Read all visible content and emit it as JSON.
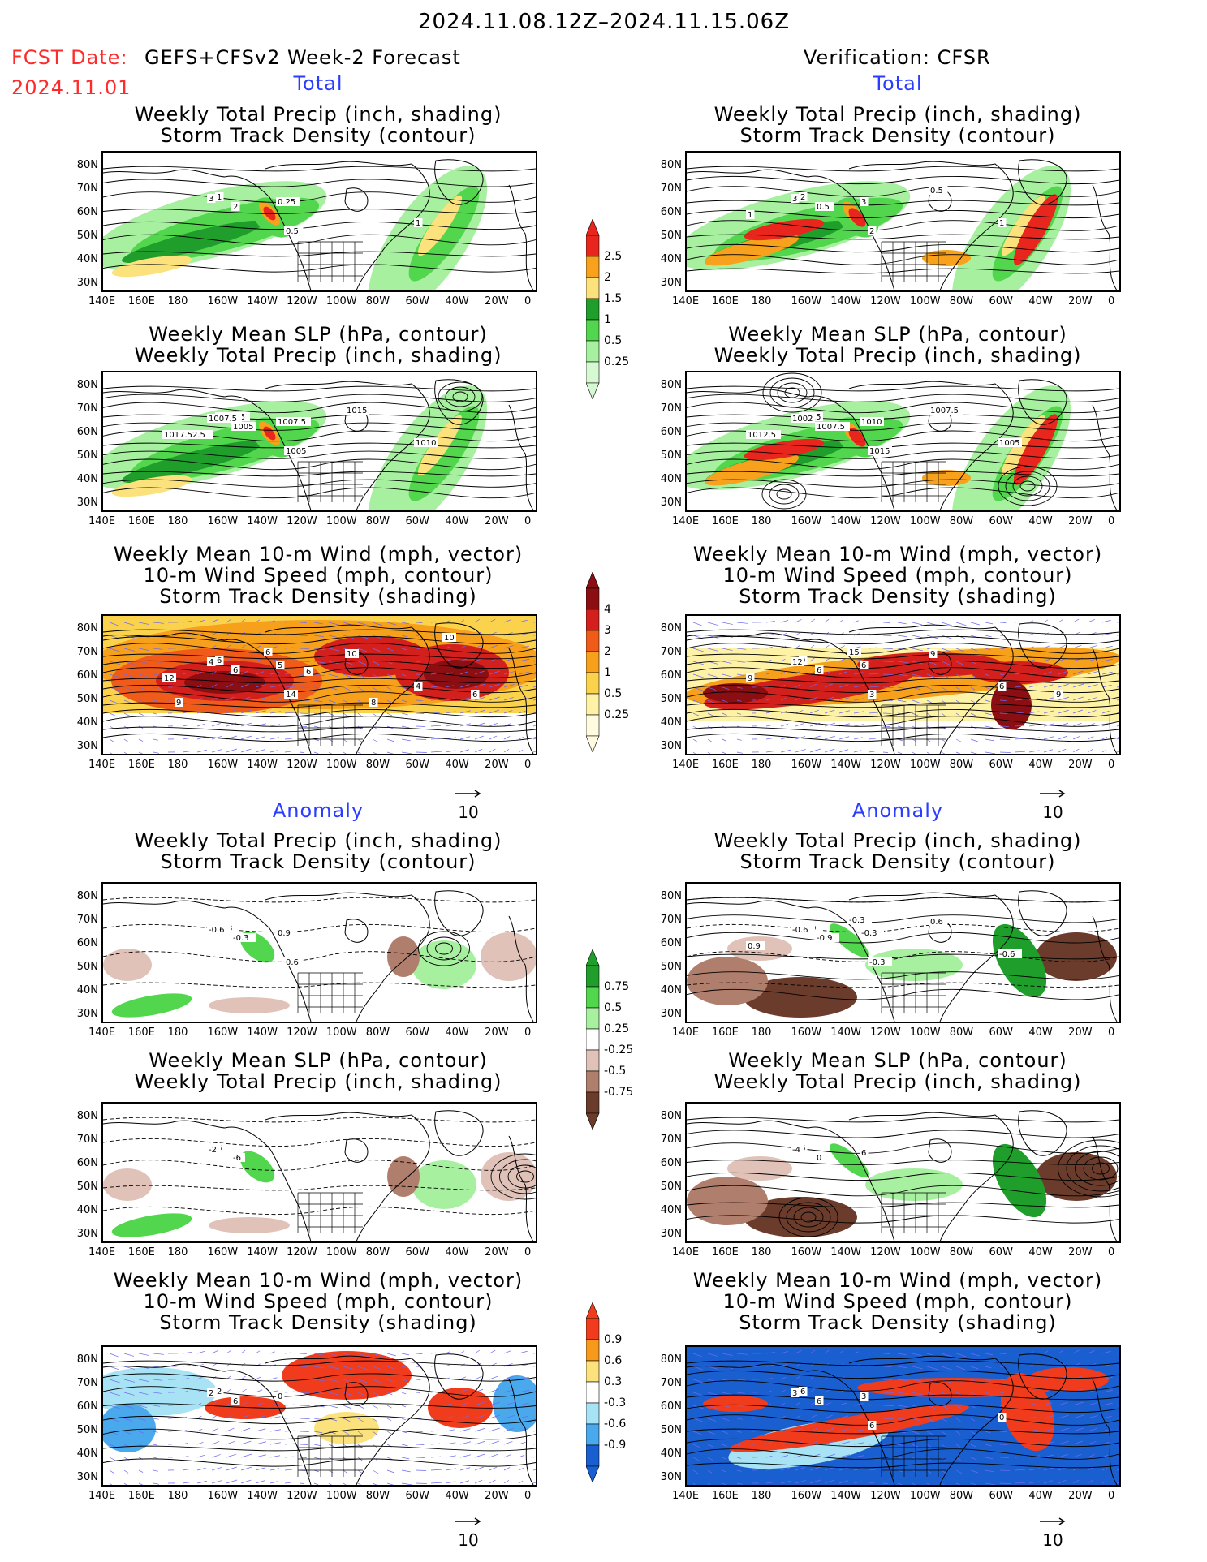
{
  "header": {
    "period": "2024.11.08.12Z–2024.11.15.06Z",
    "fcst_date_label": "FCST Date:",
    "fcst_model": "GEFS+CFSv2 Week-2 Forecast",
    "fcst_date": "2024.11.01",
    "verification": "Verification: CFSR"
  },
  "sections": {
    "total": "Total",
    "anomaly": "Anomaly"
  },
  "titles": {
    "precip_storm": [
      "Weekly Total Precip (inch, shading)",
      "Storm Track Density (contour)"
    ],
    "slp_precip": [
      "Weekly Mean SLP (hPa, contour)",
      "Weekly Total Precip (inch, shading)"
    ],
    "wind_storm": [
      "Weekly Mean 10-m Wind (mph, vector)",
      "10-m Wind Speed (mph, contour)",
      "Storm Track Density (shading)"
    ]
  },
  "axes": {
    "lon_ticks": [
      "140E",
      "160E",
      "180",
      "160W",
      "140W",
      "120W",
      "100W",
      "80W",
      "60W",
      "40W",
      "20W",
      "0"
    ],
    "lat_ticks": [
      "80N",
      "70N",
      "60N",
      "50N",
      "40N",
      "30N"
    ]
  },
  "vector_ref": "10",
  "colorbars": {
    "precip_total": {
      "labels": [
        "2.5",
        "2",
        "1.5",
        "1",
        "0.5",
        "0.25"
      ],
      "colors": [
        "#e8261e",
        "#f7a11c",
        "#fbe27c",
        "#1f9e2c",
        "#52d64d",
        "#a6f0a0",
        "#d6f8d2"
      ]
    },
    "storm_total": {
      "labels": [
        "4",
        "3",
        "2",
        "1",
        "0.5",
        "0.25"
      ],
      "colors": [
        "#8a0e12",
        "#d4201c",
        "#f05b1a",
        "#f7a01c",
        "#fbd24c",
        "#fef2a6",
        "#fffbe0"
      ]
    },
    "precip_anom": {
      "labels": [
        "0.75",
        "0.5",
        "0.25",
        "-0.25",
        "-0.5",
        "-0.75"
      ],
      "colors": [
        "#1f9e2c",
        "#52d64d",
        "#a6f0a0",
        "#ffffff",
        "#e0c2b8",
        "#b07e6c",
        "#6b3c2c"
      ]
    },
    "storm_anom": {
      "labels": [
        "0.9",
        "0.6",
        "0.3",
        "-0.3",
        "-0.6",
        "-0.9"
      ],
      "colors": [
        "#f03c1c",
        "#f79a1c",
        "#fbe27c",
        "#ffffff",
        "#a8e2f5",
        "#4aa8ec",
        "#1a5fd0"
      ]
    }
  },
  "contour_labels": {
    "L1": [
      "1",
      "3",
      "2",
      "0.25",
      "0.5",
      "1"
    ],
    "R1": [
      "2",
      "3",
      "0.5",
      "3",
      "2",
      "1",
      "1",
      "0.5"
    ],
    "L2": [
      "1017.5",
      "1007.5",
      "1005",
      "1007.5",
      "1005",
      "1010",
      "1017.52.5",
      "1015"
    ],
    "R2": [
      "1015",
      "1002",
      "1007.5",
      "1010",
      "1015",
      "1005",
      "1012.5",
      "1007.5"
    ],
    "L3": [
      "6",
      "4",
      "6",
      "5",
      "14",
      "4",
      "12",
      "10",
      "6",
      "6",
      "8",
      "6",
      "10",
      "9"
    ],
    "R3": [
      "9",
      "12",
      "6",
      "6",
      "3",
      "6",
      "9",
      "9",
      "15",
      "9"
    ],
    "L4": [
      "-0.3",
      "-0.6",
      "-0.3",
      "0.9",
      "0.6"
    ],
    "R4": [
      "-0.9",
      "-0.6",
      "-0.9",
      "-0.3",
      "-0.3",
      "-0.6",
      "0.9",
      "0.6",
      "-0.3"
    ],
    "L5": [
      "6",
      "-2",
      "-6"
    ],
    "R5": [
      "6",
      "-4",
      "0",
      "6"
    ],
    "L6": [
      "2",
      "2",
      "6",
      "0"
    ],
    "R6": [
      "6",
      "3",
      "6",
      "3",
      "6",
      "0"
    ]
  }
}
